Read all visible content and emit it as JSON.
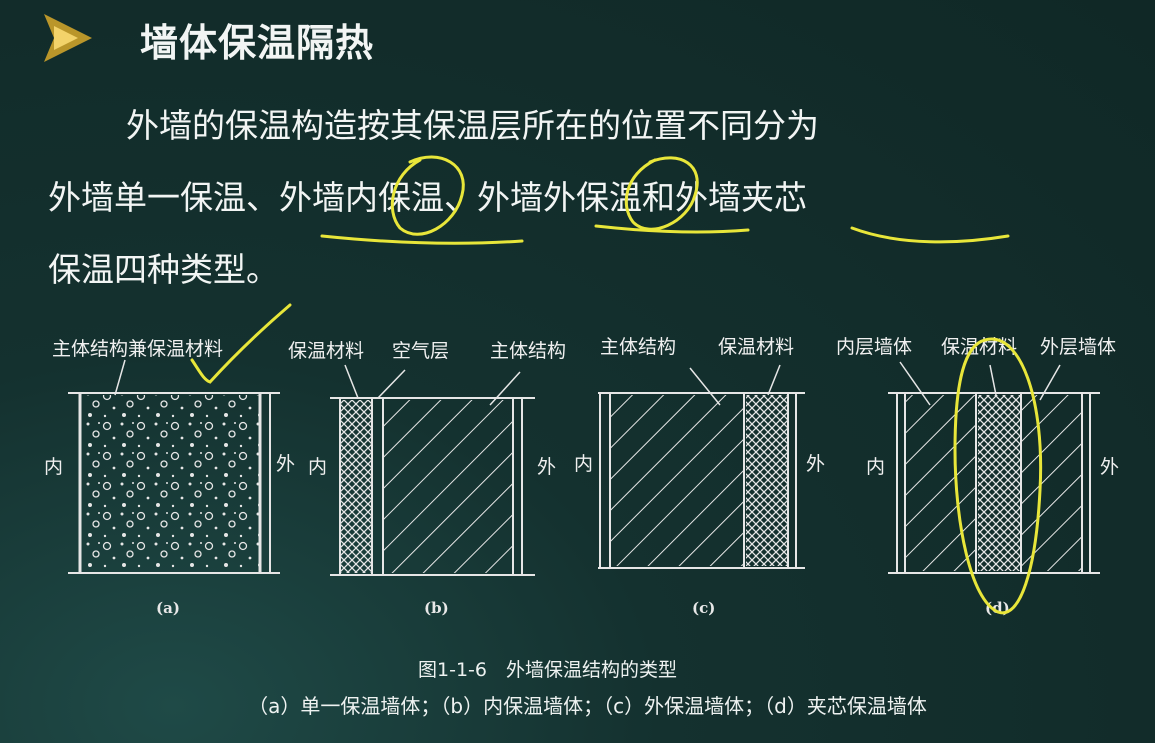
{
  "title": "墙体保温隔热",
  "paragraph": {
    "line1": "外墙的保温构造按其保温层所在的位置不同分为",
    "line2": "外墙单一保温、外墙内保温、外墙外保温和外墙夹芯",
    "line3": "保温四种类型。"
  },
  "figure": {
    "a": {
      "label1": "主体结构兼保温材料",
      "inner": "内",
      "outer": "外",
      "sub": "(a)"
    },
    "b": {
      "label1": "保温材料",
      "label2": "空气层",
      "label3": "主体结构",
      "inner": "内",
      "outer": "外",
      "sub": "(b)"
    },
    "c": {
      "label1": "主体结构",
      "label2": "保温材料",
      "inner": "内",
      "outer": "外",
      "sub": "(c)"
    },
    "d": {
      "label1": "内层墙体",
      "label2": "保温材料",
      "label3": "外层墙体",
      "inner": "内",
      "outer": "外",
      "sub": "(d)"
    },
    "caption": "图1-1-6　外墙保温结构的类型",
    "legend": "（a）单一保温墙体；（b）内保温墙体；（c）外保温墙体；（d）夹芯保温墙体"
  },
  "colors": {
    "background": "#14312f",
    "annotation": "#e8e63a",
    "play_icon": "#d8a92a"
  }
}
